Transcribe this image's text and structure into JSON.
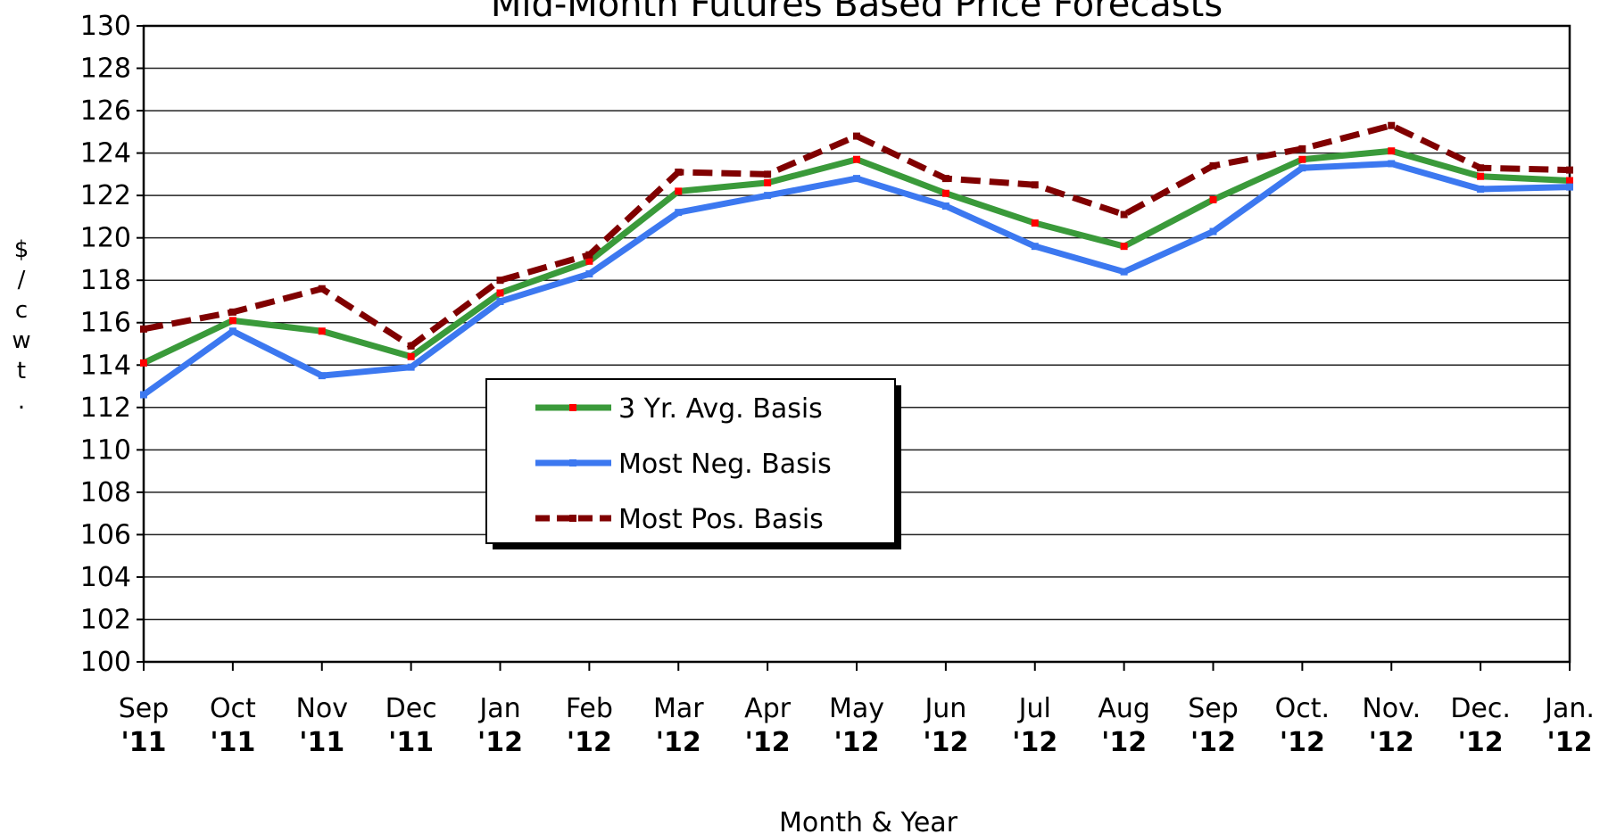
{
  "chart_data": {
    "type": "line",
    "title": "Mid-Month Futures Based Price Forecasts",
    "x_label": "Month & Year",
    "y_label": "$/cwt.",
    "categories": [
      [
        "Sep",
        "'11"
      ],
      [
        "Oct",
        "'11"
      ],
      [
        "Nov",
        "'11"
      ],
      [
        "Dec",
        "'11"
      ],
      [
        "Jan",
        "'12"
      ],
      [
        "Feb",
        "'12"
      ],
      [
        "Mar",
        "'12"
      ],
      [
        "Apr",
        "'12"
      ],
      [
        "May",
        "'12"
      ],
      [
        "Jun",
        "'12"
      ],
      [
        "Jul",
        "'12"
      ],
      [
        "Aug",
        "'12"
      ],
      [
        "Sep",
        "'12"
      ],
      [
        "Oct.",
        "'12"
      ],
      [
        "Nov.",
        "'12"
      ],
      [
        "Dec.",
        "'12"
      ],
      [
        "Jan.",
        "'12"
      ]
    ],
    "series": [
      {
        "name": "3 Yr. Avg. Basis",
        "color": "#3a9a3a",
        "marker_color": "#ff0000",
        "dash": false,
        "values": [
          114.1,
          116.1,
          115.6,
          114.4,
          117.4,
          118.9,
          122.2,
          122.6,
          123.7,
          122.1,
          120.7,
          119.6,
          121.8,
          123.7,
          124.1,
          122.9,
          122.7
        ]
      },
      {
        "name": "Most Neg. Basis",
        "color": "#3c78f0",
        "marker_color": "#3c78f0",
        "dash": false,
        "values": [
          112.6,
          115.6,
          113.5,
          113.9,
          117.0,
          118.3,
          121.2,
          122.0,
          122.8,
          121.5,
          119.6,
          118.4,
          120.3,
          123.3,
          123.5,
          122.3,
          122.4
        ]
      },
      {
        "name": "Most Pos. Basis",
        "color": "#800000",
        "marker_color": "#800000",
        "dash": true,
        "values": [
          115.7,
          116.5,
          117.6,
          114.9,
          118.0,
          119.2,
          123.1,
          123.0,
          124.8,
          122.8,
          122.5,
          121.1,
          123.4,
          124.2,
          125.3,
          123.3,
          123.2
        ]
      }
    ],
    "ylim": [
      100,
      130
    ],
    "yticks": [
      100,
      102,
      104,
      106,
      108,
      110,
      112,
      114,
      116,
      118,
      120,
      122,
      124,
      126,
      128,
      130
    ],
    "grid": true
  }
}
